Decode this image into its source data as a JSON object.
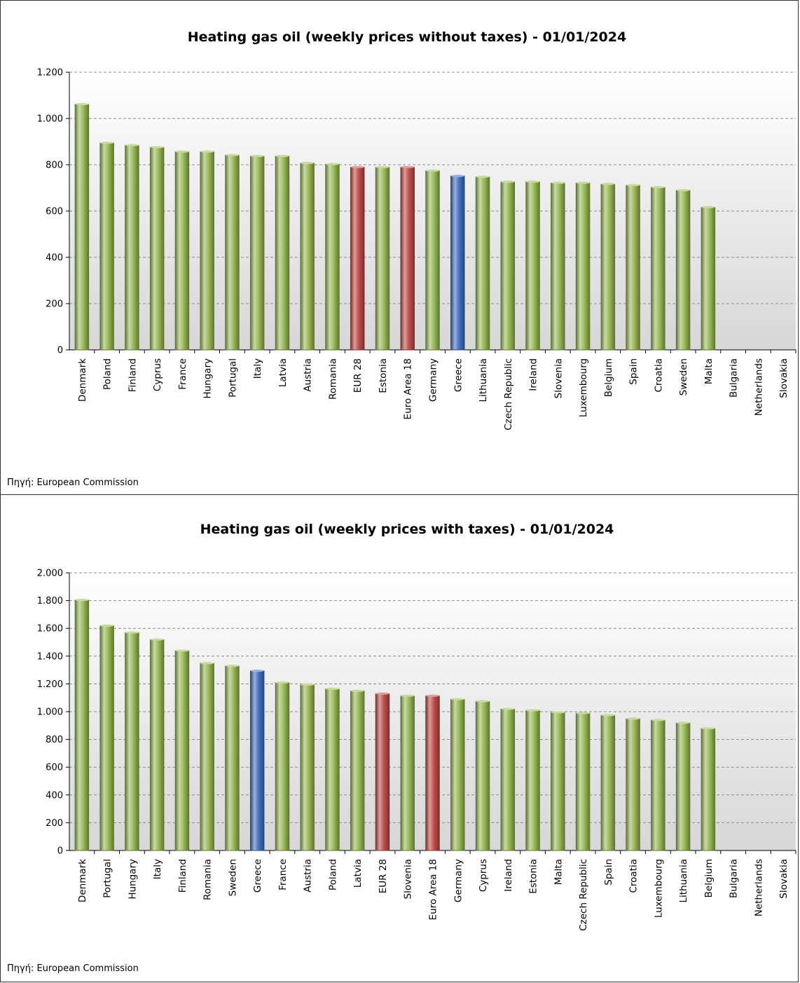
{
  "colors": {
    "default": "#9bbb59",
    "eu_average": "#c0504d",
    "greece": "#4472c4"
  },
  "chart_data": [
    {
      "type": "bar",
      "title": "Heating gas oil (weekly prices without taxes) - 01/01/2024",
      "source": "Πηγή: European Commission",
      "categories": [
        "Denmark",
        "Poland",
        "Finland",
        "Cyprus",
        "France",
        "Hungary",
        "Portugal",
        "Italy",
        "Latvia",
        "Austria",
        "Romania",
        "EUR 28",
        "Estonia",
        "Euro Area 18",
        "Germany",
        "Greece",
        "Lithuania",
        "Czech Republic",
        "Ireland",
        "Slovenia",
        "Luxembourg",
        "Belgium",
        "Spain",
        "Croatia",
        "Sweden",
        "Malta",
        "Bulgaria",
        "Netherlands",
        "Slovakia"
      ],
      "values": [
        1062,
        895,
        885,
        876,
        857,
        857,
        842,
        838,
        838,
        808,
        803,
        790,
        790,
        790,
        775,
        752,
        748,
        727,
        727,
        722,
        722,
        717,
        712,
        703,
        690,
        617,
        null,
        null,
        null
      ],
      "highlight": {
        "EUR 28": "eu_average",
        "Euro Area 18": "eu_average",
        "Greece": "greece"
      },
      "ylim": [
        0,
        1200
      ],
      "yticks": [
        0,
        200,
        400,
        600,
        800,
        1000,
        1200
      ],
      "ytick_labels": [
        "0",
        "200",
        "400",
        "600",
        "800",
        "1.000",
        "1.200"
      ],
      "grid": true,
      "legend": "none"
    },
    {
      "type": "bar",
      "title": "Heating gas oil (weekly prices with taxes) - 01/01/2024",
      "source": "Πηγή: European Commission",
      "categories": [
        "Denmark",
        "Portugal",
        "Hungary",
        "Italy",
        "Finland",
        "Romania",
        "Sweden",
        "Greece",
        "France",
        "Austria",
        "Poland",
        "Latvia",
        "EUR 28",
        "Slovenia",
        "Euro Area 18",
        "Germany",
        "Cyprus",
        "Ireland",
        "Estonia",
        "Malta",
        "Czech Republic",
        "Spain",
        "Croatia",
        "Luxembourg",
        "Lithuania",
        "Belgium",
        "Bulgaria",
        "Netherlands",
        "Slovakia"
      ],
      "values": [
        1805,
        1620,
        1570,
        1520,
        1440,
        1350,
        1330,
        1295,
        1210,
        1195,
        1165,
        1150,
        1130,
        1115,
        1115,
        1090,
        1075,
        1020,
        1010,
        995,
        990,
        975,
        950,
        940,
        920,
        880,
        null,
        null,
        null
      ],
      "highlight": {
        "EUR 28": "eu_average",
        "Euro Area 18": "eu_average",
        "Greece": "greece"
      },
      "ylim": [
        0,
        2000
      ],
      "yticks": [
        0,
        200,
        400,
        600,
        800,
        1000,
        1200,
        1400,
        1600,
        1800,
        2000
      ],
      "ytick_labels": [
        "0",
        "200",
        "400",
        "600",
        "800",
        "1.000",
        "1.200",
        "1.400",
        "1.600",
        "1.800",
        "2.000"
      ],
      "grid": true,
      "legend": "none"
    }
  ]
}
